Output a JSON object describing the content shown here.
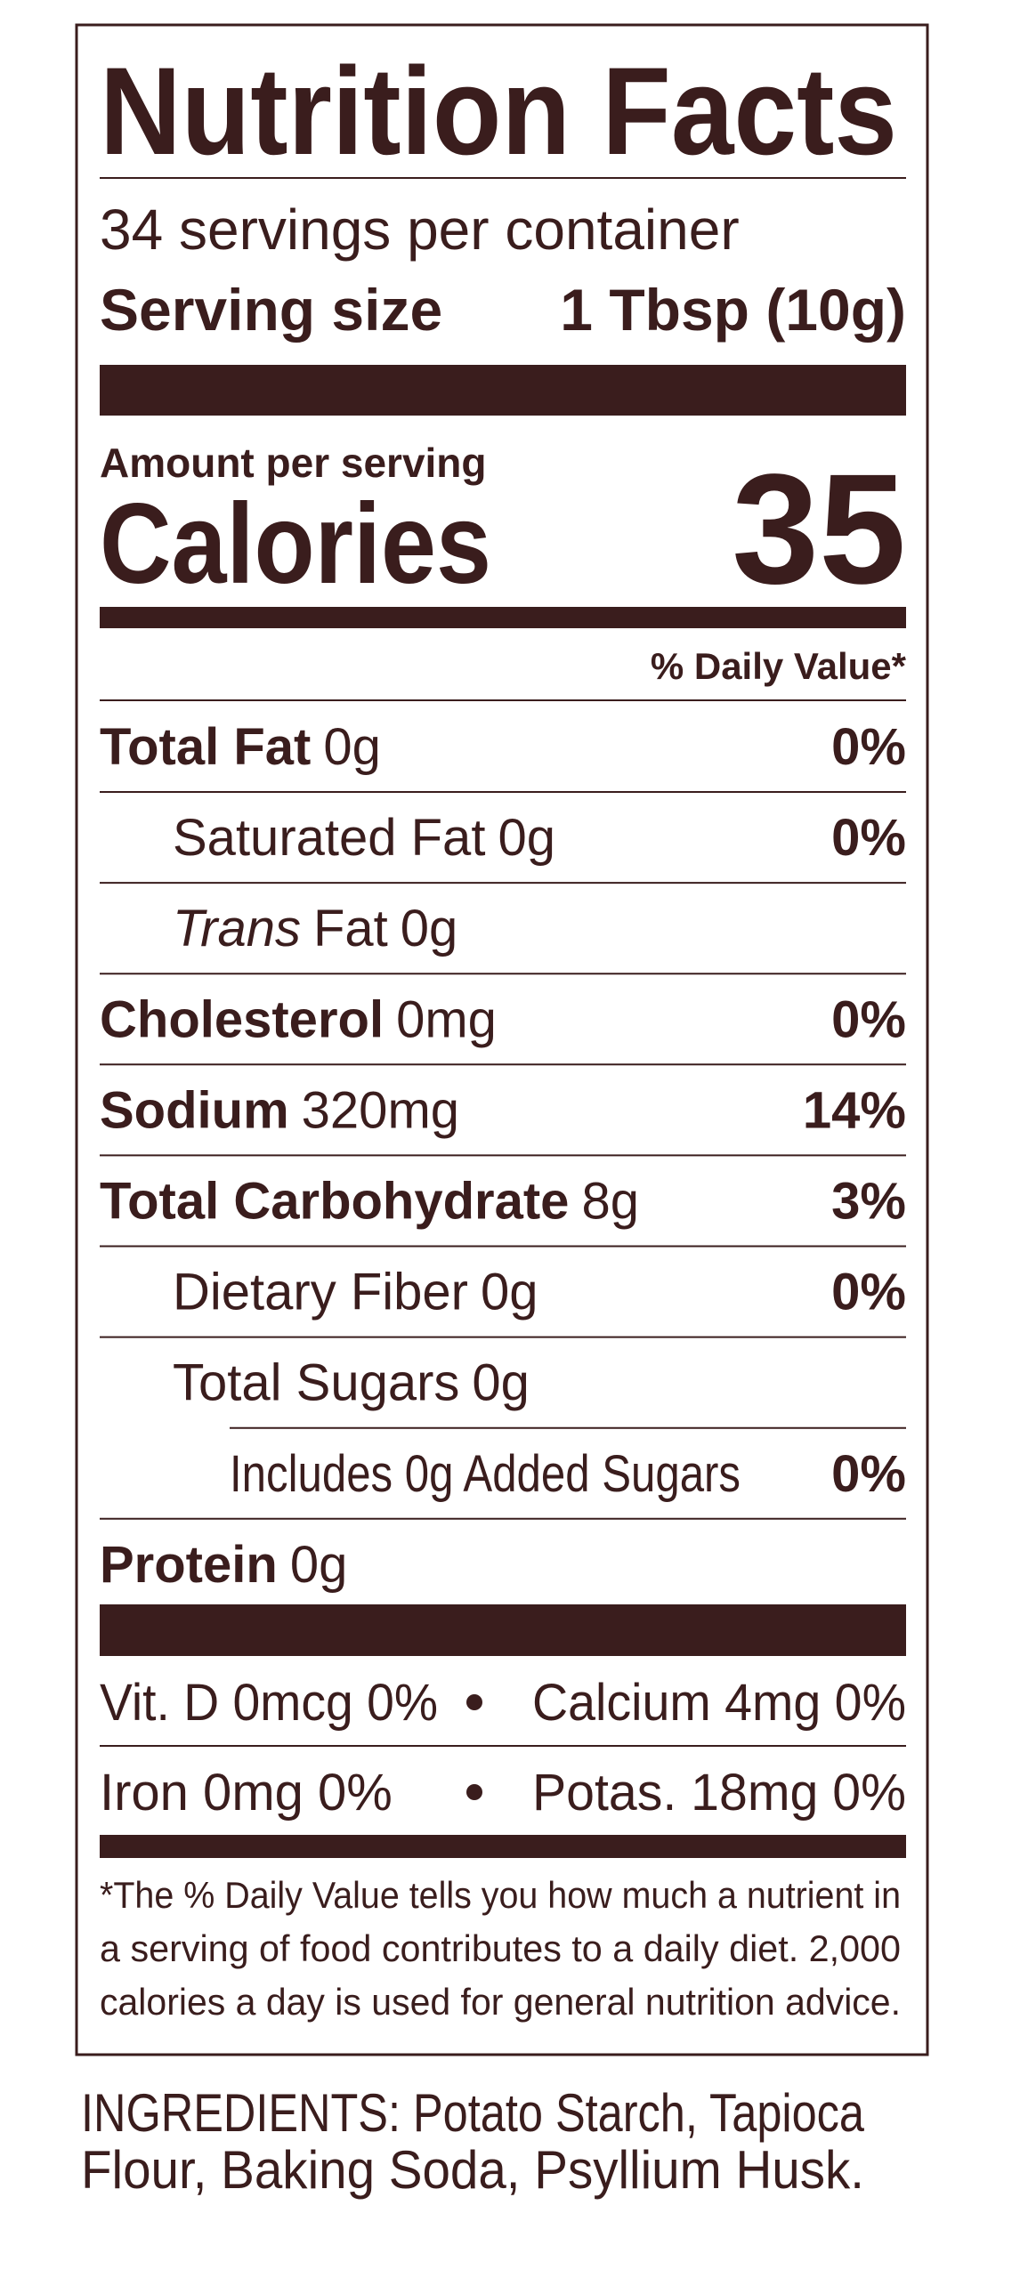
{
  "header": {
    "title": "Nutrition Facts",
    "servings": "34 servings per container",
    "serving_size_label": "Serving size",
    "serving_size_value": "1 Tbsp (10g)"
  },
  "calories": {
    "amount_label": "Amount per serving",
    "label": "Calories",
    "value": "35"
  },
  "daily_value_header": "% Daily Value*",
  "nutrients": [
    {
      "name": "Total Fat",
      "amount": "0g",
      "dv": "0%"
    },
    {
      "name": "Saturated Fat",
      "amount": "0g",
      "dv": "0%"
    },
    {
      "name_italic": "Trans",
      "name": "Fat",
      "amount": "0g"
    },
    {
      "name": "Cholesterol",
      "amount": "0mg",
      "dv": "0%"
    },
    {
      "name": "Sodium",
      "amount": "320mg",
      "dv": "14%"
    },
    {
      "name": "Total Carbohydrate",
      "amount": "8g",
      "dv": "3%"
    },
    {
      "name": "Dietary Fiber",
      "amount": "0g",
      "dv": "0%"
    },
    {
      "name": "Total Sugars",
      "amount": "0g"
    },
    {
      "name": "Includes 0g Added Sugars",
      "dv": "0%"
    },
    {
      "name": "Protein",
      "amount": "0g"
    }
  ],
  "vitamins_minerals": [
    [
      "Vit. D 0mcg 0%",
      "Calcium 4mg 0%"
    ],
    [
      "Iron 0mg 0%",
      "Potas. 18mg 0%"
    ]
  ],
  "footnote": [
    "*The % Daily Value tells you how much a nutrient in",
    "a serving of food contributes to a daily diet. 2,000",
    "calories a day is used for general nutrition advice."
  ],
  "ingredients": [
    "INGREDIENTS: Potato Starch, Tapioca",
    "Flour, Baking Soda, Psyllium Husk."
  ]
}
